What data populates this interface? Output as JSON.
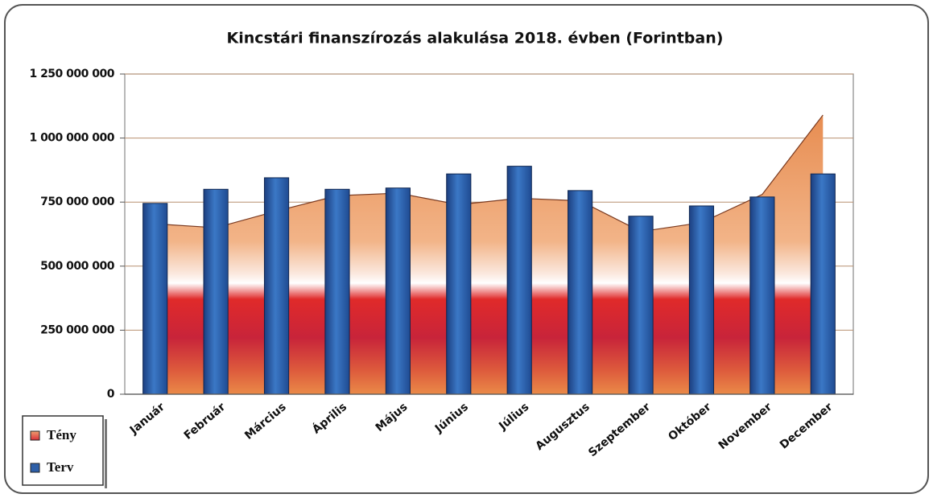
{
  "chart_data": {
    "type": "bar",
    "title": "Kincstári finanszírozás alakulása  2018. évben (Forintban)",
    "categories": [
      "Január",
      "Február",
      "Március",
      "Április",
      "Május",
      "Június",
      "Július",
      "Augusztus",
      "Szeptember",
      "Október",
      "November",
      "December"
    ],
    "series": [
      {
        "name": "Tény",
        "type": "area",
        "color": "#e8874a",
        "values": [
          665000000,
          650000000,
          715000000,
          775000000,
          785000000,
          740000000,
          765000000,
          755000000,
          635000000,
          670000000,
          780000000,
          1090000000
        ]
      },
      {
        "name": "Terv",
        "type": "bar",
        "color": "#2d5fa8",
        "values": [
          745000000,
          800000000,
          845000000,
          800000000,
          805000000,
          860000000,
          890000000,
          795000000,
          695000000,
          735000000,
          770000000,
          860000000
        ]
      }
    ],
    "ylim": [
      0,
      1250000000
    ],
    "yticks": [
      0,
      {
        "value": 250000000,
        "label": "250 000 000"
      },
      {
        "value": 500000000,
        "label": "500 000 000"
      },
      {
        "value": 750000000,
        "label": "750 000 000"
      },
      {
        "value": 1000000000,
        "label": "1 000 000 000"
      },
      {
        "value": 1250000000,
        "label": "1 250 000 000"
      }
    ],
    "grid": true,
    "legend": "bottom-left"
  }
}
